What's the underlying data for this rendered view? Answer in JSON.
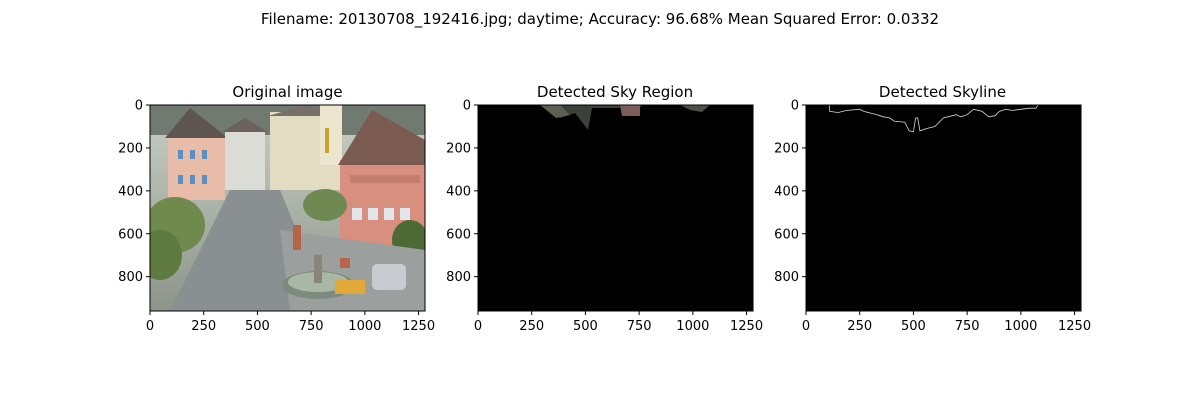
{
  "figure": {
    "title": "Filename: 20130708_192416.jpg; daytime; Accuracy: 96.68% Mean Squared Error: 0.0332"
  },
  "chart_data": [
    {
      "type": "image",
      "title": "Original image",
      "xlim": [
        0,
        1280
      ],
      "ylim": [
        960,
        0
      ],
      "xticks": [
        0,
        250,
        500,
        750,
        1000,
        1250
      ],
      "yticks": [
        0,
        200,
        400,
        600,
        800
      ],
      "content": "color photograph of a town square with pink and white buildings, fountain, trees, parked car"
    },
    {
      "type": "image",
      "title": "Detected Sky Region",
      "xlim": [
        0,
        1280
      ],
      "ylim": [
        960,
        0
      ],
      "xticks": [
        0,
        250,
        500,
        750,
        1000,
        1250
      ],
      "yticks": [
        0,
        200,
        400,
        600,
        800
      ],
      "content": "black mask with small detected sky region along the top edge"
    },
    {
      "type": "image",
      "title": "Detected Skyline",
      "xlim": [
        0,
        1280
      ],
      "ylim": [
        960,
        0
      ],
      "xticks": [
        0,
        250,
        500,
        750,
        1000,
        1250
      ],
      "yticks": [
        0,
        200,
        400,
        600,
        800
      ],
      "content": "black background with thin white skyline contour near the top",
      "skyline": [
        [
          110,
          0
        ],
        [
          110,
          30
        ],
        [
          150,
          35
        ],
        [
          190,
          25
        ],
        [
          250,
          20
        ],
        [
          270,
          30
        ],
        [
          310,
          40
        ],
        [
          330,
          45
        ],
        [
          360,
          55
        ],
        [
          390,
          60
        ],
        [
          410,
          75
        ],
        [
          460,
          80
        ],
        [
          480,
          120
        ],
        [
          500,
          125
        ],
        [
          510,
          60
        ],
        [
          520,
          60
        ],
        [
          530,
          120
        ],
        [
          560,
          110
        ],
        [
          600,
          100
        ],
        [
          640,
          60
        ],
        [
          660,
          55
        ],
        [
          700,
          45
        ],
        [
          720,
          55
        ],
        [
          750,
          45
        ],
        [
          780,
          20
        ],
        [
          820,
          30
        ],
        [
          850,
          55
        ],
        [
          880,
          50
        ],
        [
          900,
          30
        ],
        [
          930,
          20
        ],
        [
          960,
          25
        ],
        [
          1000,
          20
        ],
        [
          1040,
          15
        ],
        [
          1070,
          15
        ],
        [
          1080,
          0
        ]
      ]
    }
  ]
}
